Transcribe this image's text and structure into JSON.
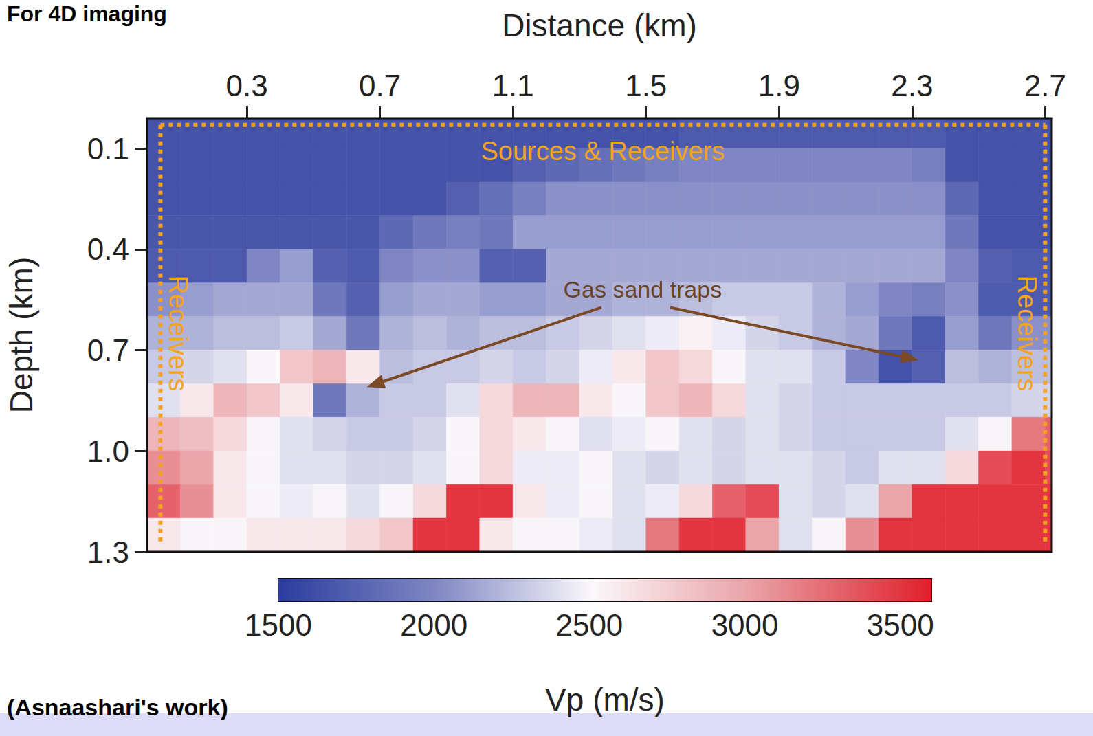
{
  "chart_data": {
    "type": "heatmap",
    "title": "For 4D imaging",
    "footer": "(Asnaashari's work)",
    "x_label": "Distance (km)",
    "y_label": "Depth (km)",
    "xlim": [
      0,
      2.72
    ],
    "xticks": [
      0.3,
      0.7,
      1.1,
      1.5,
      1.9,
      2.3,
      2.7
    ],
    "ylim": [
      0.01,
      1.3
    ],
    "yticks": [
      0.1,
      0.4,
      0.7,
      {
        "value": 1.0,
        "label": "1.0"
      },
      1.3
    ],
    "cells": {
      "x": [
        0.05,
        0.15,
        0.25,
        0.35,
        0.45,
        0.55,
        0.65,
        0.75,
        0.85,
        0.95,
        1.05,
        1.15,
        1.25,
        1.35,
        1.45,
        1.55,
        1.65,
        1.75,
        1.85,
        1.95,
        2.05,
        2.15,
        2.25,
        2.35,
        2.45,
        2.55,
        2.65,
        2.75
      ],
      "y": [
        0.05,
        0.15,
        0.25,
        0.35,
        0.45,
        0.55,
        0.65,
        0.75,
        0.85,
        0.95,
        1.05,
        1.15,
        1.25
      ],
      "values": [
        [
          1650,
          1650,
          1650,
          1650,
          1650,
          1650,
          1650,
          1650,
          1650,
          1650,
          1650,
          1650,
          1650,
          1650,
          1650,
          1650,
          1700,
          1700,
          1700,
          1700,
          1700,
          1700,
          1700,
          1700,
          1650,
          1650,
          1650,
          1650
        ],
        [
          1650,
          1650,
          1650,
          1650,
          1650,
          1650,
          1650,
          1650,
          1650,
          1650,
          1650,
          1750,
          1800,
          1850,
          1900,
          1950,
          2000,
          2000,
          2000,
          2000,
          2000,
          2000,
          2000,
          1950,
          1650,
          1650,
          1650,
          1650
        ],
        [
          1650,
          1650,
          1650,
          1650,
          1650,
          1650,
          1650,
          1650,
          1650,
          1750,
          1850,
          1950,
          2050,
          2050,
          2050,
          2050,
          2050,
          2050,
          2050,
          2050,
          2050,
          2050,
          2050,
          2050,
          1800,
          1650,
          1650,
          1650
        ],
        [
          1680,
          1680,
          1680,
          1680,
          1680,
          1680,
          1680,
          1800,
          1900,
          1950,
          1900,
          2100,
          2100,
          2100,
          2100,
          2100,
          2100,
          2100,
          2100,
          2100,
          2100,
          2100,
          2100,
          2100,
          1900,
          1650,
          1650,
          1650
        ],
        [
          1700,
          1700,
          1700,
          2000,
          2100,
          1750,
          1700,
          2000,
          2050,
          2050,
          1750,
          1750,
          2150,
          2150,
          2150,
          2150,
          2150,
          2150,
          2150,
          2150,
          2150,
          2150,
          2150,
          2150,
          2000,
          1750,
          1700,
          1700
        ],
        [
          2050,
          2100,
          2150,
          2150,
          2150,
          1900,
          1750,
          2100,
          2150,
          2150,
          2100,
          2100,
          2150,
          2150,
          2200,
          2200,
          2250,
          2300,
          2300,
          2300,
          2200,
          2100,
          2000,
          1950,
          2050,
          1700,
          1700,
          1700
        ],
        [
          2200,
          2200,
          2250,
          2250,
          2300,
          2150,
          1900,
          2200,
          2250,
          2200,
          2250,
          2250,
          2300,
          2350,
          2400,
          2450,
          2550,
          2450,
          2350,
          2300,
          2200,
          2150,
          1900,
          1700,
          2100,
          1900,
          2050,
          2050
        ],
        [
          2300,
          2350,
          2400,
          2500,
          2800,
          2900,
          2600,
          2250,
          2300,
          2300,
          2350,
          2300,
          2350,
          2450,
          2600,
          2800,
          2700,
          2500,
          2400,
          2400,
          2300,
          2000,
          1650,
          1750,
          2250,
          2200,
          2250,
          2250
        ],
        [
          2400,
          2600,
          2900,
          2800,
          2600,
          1900,
          2200,
          2300,
          2300,
          2400,
          2700,
          2900,
          2900,
          2600,
          2500,
          2800,
          2900,
          2700,
          2400,
          2350,
          2300,
          2300,
          2300,
          2300,
          2300,
          2300,
          2350,
          2350
        ],
        [
          2900,
          2850,
          2700,
          2500,
          2400,
          2350,
          2300,
          2300,
          2350,
          2500,
          2700,
          2600,
          2500,
          2400,
          2450,
          2500,
          2400,
          2350,
          2400,
          2350,
          2300,
          2300,
          2300,
          2300,
          2400,
          2500,
          3200,
          3300
        ],
        [
          3100,
          3000,
          2600,
          2500,
          2400,
          2400,
          2350,
          2350,
          2400,
          2500,
          2700,
          2450,
          2450,
          2500,
          2400,
          2350,
          2400,
          2350,
          2400,
          2400,
          2350,
          2300,
          2400,
          2400,
          2700,
          3400,
          3500,
          3400
        ],
        [
          3300,
          3100,
          2600,
          2500,
          2450,
          2500,
          2400,
          2500,
          2700,
          3500,
          3500,
          2600,
          2450,
          2500,
          2400,
          2450,
          2700,
          3300,
          3400,
          2400,
          2350,
          2400,
          3000,
          3500,
          3500,
          3500,
          3500,
          3500
        ],
        [
          2600,
          2500,
          2500,
          2600,
          2600,
          2600,
          2700,
          2800,
          3500,
          3500,
          2600,
          2500,
          2500,
          2450,
          2400,
          3200,
          3500,
          3500,
          3000,
          2400,
          2500,
          3100,
          3500,
          3500,
          3500,
          3500,
          3500,
          3500
        ]
      ]
    },
    "colorbar": {
      "label": "Vp (m/s)",
      "range": [
        1500,
        3600
      ],
      "ticks": [
        1500,
        2000,
        2500,
        3000,
        3500
      ]
    },
    "acquisition": [
      {
        "label": "Sources & Receivers",
        "x": [
          0.04,
          2.7
        ],
        "y": [
          0.03,
          0.03
        ]
      },
      {
        "label": "Receivers",
        "x": [
          0.04,
          0.04
        ],
        "y": [
          0.03,
          1.27
        ]
      },
      {
        "label": "Receivers",
        "x": [
          2.7,
          2.7
        ],
        "y": [
          0.03,
          1.27
        ]
      }
    ],
    "annotations": [
      {
        "text": "Gas sand traps",
        "x": 1.49,
        "y": 0.52,
        "arrows": [
          [
            0.66,
            0.81
          ],
          [
            2.32,
            0.73
          ]
        ]
      }
    ]
  }
}
